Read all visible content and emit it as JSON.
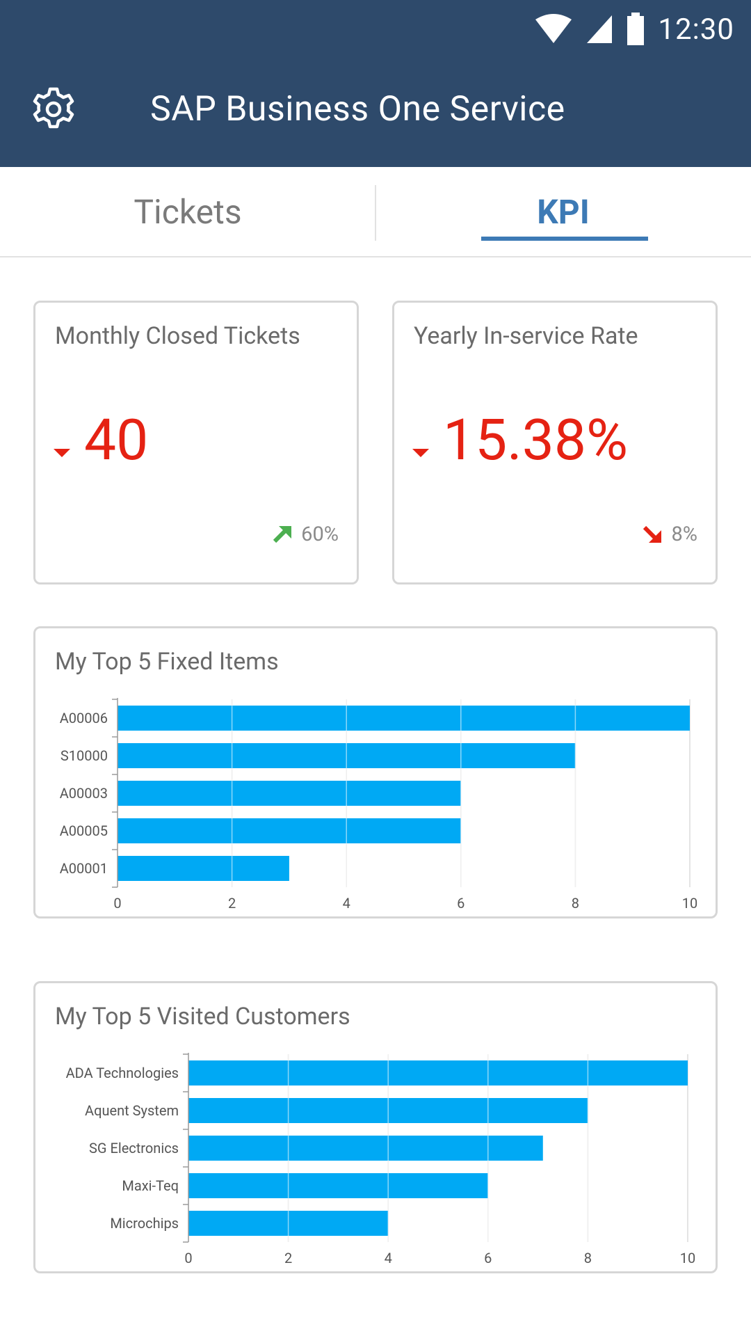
{
  "status": {
    "time": "12:30"
  },
  "app": {
    "title": "SAP Business One Service"
  },
  "tabs": [
    {
      "label": "Tickets",
      "active": false
    },
    {
      "label": "KPI",
      "active": true
    }
  ],
  "kpis": [
    {
      "title": "Monthly Closed Tickets",
      "value": "40",
      "trend": "60%",
      "trend_dir": "up"
    },
    {
      "title": "Yearly In-service Rate",
      "value": "15.38%",
      "trend": "8%",
      "trend_dir": "down"
    }
  ],
  "colors": {
    "appbar": "#2e4a6b",
    "accent": "#3d7ab5",
    "bar": "#00a9f4",
    "negative": "#e52213",
    "positive": "#4caf50"
  },
  "chart_data": [
    {
      "type": "bar",
      "orientation": "horizontal",
      "title": "My Top 5 Fixed Items",
      "categories": [
        "A00006",
        "S10000",
        "A00003",
        "A00005",
        "A00001"
      ],
      "values": [
        10,
        8,
        6,
        6,
        3
      ],
      "xlim": [
        0,
        10
      ],
      "xticks": [
        0,
        2,
        4,
        6,
        8,
        10
      ],
      "grid": true
    },
    {
      "type": "bar",
      "orientation": "horizontal",
      "title": "My Top 5 Visited Customers",
      "categories": [
        "ADA Technologies",
        "Aquent System",
        "SG Electronics",
        "Maxi-Teq",
        "Microchips"
      ],
      "values": [
        10,
        8,
        7.1,
        6,
        4
      ],
      "xlim": [
        0,
        10
      ],
      "xticks": [
        0,
        2,
        4,
        6,
        8,
        10
      ],
      "grid": true
    }
  ]
}
